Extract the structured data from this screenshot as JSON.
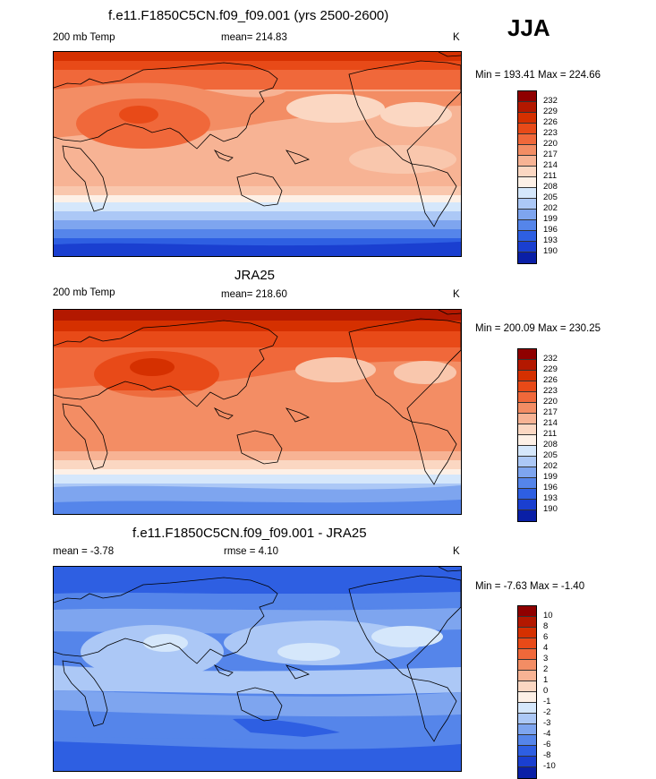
{
  "season": "JJA",
  "panels": [
    {
      "title": "f.e11.F1850C5CN.f09_f09.001 (yrs 2500-2600)",
      "left_label": "200 mb Temp",
      "center_label": "mean= 214.83",
      "units": "K",
      "minmax": "Min = 193.41 Max = 224.66",
      "colorbar": {
        "labels": [
          "232",
          "229",
          "226",
          "223",
          "220",
          "217",
          "214",
          "211",
          "208",
          "205",
          "202",
          "199",
          "196",
          "193",
          "190"
        ],
        "colors": [
          "#8f0000",
          "#b31800",
          "#d53000",
          "#e84a18",
          "#f0683a",
          "#f38d64",
          "#f7b394",
          "#fbd7c2",
          "#fdf0e6",
          "#d5e7fb",
          "#acc8f6",
          "#7ea5ef",
          "#5585ea",
          "#2e5fe2",
          "#1a3fd0",
          "#0a1fa6"
        ]
      }
    },
    {
      "title": "JRA25",
      "left_label": "200 mb Temp",
      "center_label": "mean= 218.60",
      "units": "K",
      "minmax": "Min = 200.09 Max = 230.25",
      "colorbar": {
        "labels": [
          "232",
          "229",
          "226",
          "223",
          "220",
          "217",
          "214",
          "211",
          "208",
          "205",
          "202",
          "199",
          "196",
          "193",
          "190"
        ],
        "colors": [
          "#8f0000",
          "#b31800",
          "#d53000",
          "#e84a18",
          "#f0683a",
          "#f38d64",
          "#f7b394",
          "#fbd7c2",
          "#fdf0e6",
          "#d5e7fb",
          "#acc8f6",
          "#7ea5ef",
          "#5585ea",
          "#2e5fe2",
          "#1a3fd0",
          "#0a1fa6"
        ]
      }
    },
    {
      "title": "f.e11.F1850C5CN.f09_f09.001 - JRA25",
      "left_label": "mean =  -3.78",
      "center_label": "rmse =   4.10",
      "units": "K",
      "minmax": "Min =  -7.63 Max =  -1.40",
      "colorbar": {
        "labels": [
          "10",
          "8",
          "6",
          "4",
          "3",
          "2",
          "1",
          "0",
          "-1",
          "-2",
          "-3",
          "-4",
          "-6",
          "-8",
          "-10"
        ],
        "colors": [
          "#8f0000",
          "#b31800",
          "#d53000",
          "#e84a18",
          "#f0683a",
          "#f38d64",
          "#f7b394",
          "#fbd7c2",
          "#fdf0e6",
          "#d5e7fb",
          "#acc8f6",
          "#7ea5ef",
          "#5585ea",
          "#2e5fe2",
          "#1a3fd0",
          "#0a1fa6"
        ]
      }
    }
  ]
}
